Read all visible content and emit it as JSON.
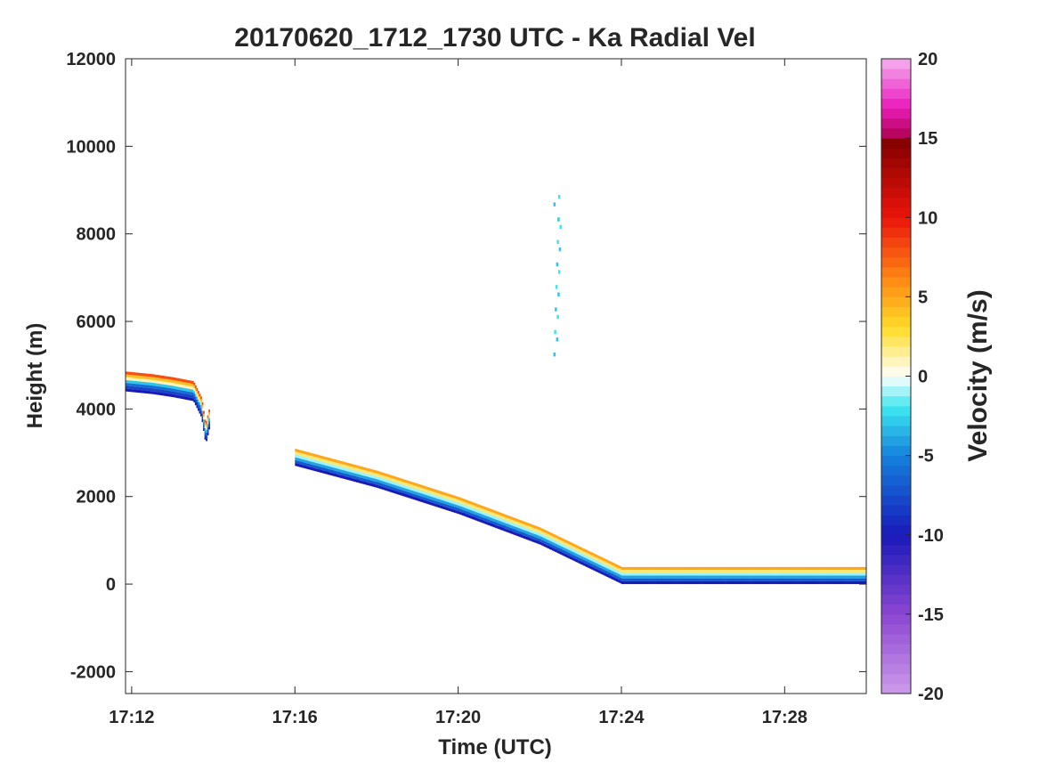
{
  "chart_data": {
    "type": "heatmap",
    "title": "20170620_1712_1730 UTC - Ka Radial Vel",
    "xlabel": "Time (UTC)",
    "ylabel": "Height (m)",
    "xlim": [
      "17:11:51",
      "17:30:00"
    ],
    "ylim": [
      -2500,
      12000
    ],
    "xticks": [
      "17:12",
      "17:16",
      "17:20",
      "17:24",
      "17:28"
    ],
    "yticks": [
      -2000,
      0,
      2000,
      4000,
      6000,
      8000,
      10000,
      12000
    ],
    "grid": false,
    "colorbar": {
      "label": "Velocity (m/s)",
      "range": [
        -20,
        20
      ],
      "ticks": [
        -20,
        -15,
        -10,
        -5,
        0,
        5,
        10,
        15,
        20
      ]
    },
    "features": [
      {
        "name": "descent band 1",
        "time": [
          "17:11:51",
          "17:12:30",
          "17:13:00",
          "17:13:30",
          "17:13:42",
          "17:13:48",
          "17:13:54"
        ],
        "height": [
          4400,
          4340,
          4270,
          4180,
          3800,
          3200,
          3600
        ],
        "velocity_profile": [
          [
            -10,
            -8,
            -6,
            -3,
            1,
            4,
            8
          ]
        ]
      },
      {
        "name": "descent band 2",
        "time": [
          "17:16:00",
          "17:18:00",
          "17:20:00",
          "17:22:00",
          "17:24:00",
          "17:30:00"
        ],
        "height": [
          2700,
          2200,
          1600,
          900,
          0,
          0
        ],
        "velocity_profile": [
          [
            -10,
            -7,
            -4,
            -1,
            2,
            5
          ]
        ]
      },
      {
        "name": "isolated echoes",
        "time": [
          "17:22:20",
          "17:22:30"
        ],
        "height": [
          5200,
          8800
        ],
        "velocity": [
          -3,
          -2
        ]
      }
    ]
  }
}
